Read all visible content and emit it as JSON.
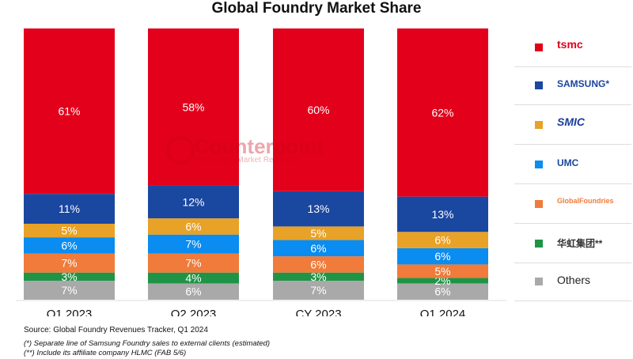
{
  "chart_data": {
    "type": "bar",
    "stacked": true,
    "title": "Global Foundry Market Share",
    "categories": [
      "Q1 2023",
      "Q2 2023",
      "CY 2023",
      "Q1 2024"
    ],
    "series": [
      {
        "name": "TSMC",
        "color": "#e3001b",
        "values": [
          61,
          58,
          60,
          62
        ]
      },
      {
        "name": "Samsung",
        "color": "#1a47a0",
        "values": [
          11,
          12,
          13,
          13
        ]
      },
      {
        "name": "SMIC",
        "color": "#e8a228",
        "values": [
          5,
          6,
          5,
          6
        ]
      },
      {
        "name": "UMC",
        "color": "#0a8cf0",
        "values": [
          6,
          7,
          6,
          6
        ]
      },
      {
        "name": "GlobalFoundries",
        "color": "#f07b3a",
        "values": [
          7,
          7,
          6,
          5
        ]
      },
      {
        "name": "Huahong Group",
        "color": "#1f9446",
        "values": [
          3,
          4,
          3,
          2
        ]
      },
      {
        "name": "Others",
        "color": "#a9a9a9",
        "values": [
          7,
          6,
          7,
          6
        ]
      }
    ],
    "value_format": "{v}%",
    "xlabel": "",
    "ylabel": "",
    "ylim": [
      0,
      100
    ],
    "grid": false,
    "legend_position": "right"
  },
  "legend": [
    {
      "label": "tsmc",
      "style": "logo",
      "color": "#e3001b"
    },
    {
      "label": "SAMSUNG*",
      "style": "logo",
      "color": "#1a47a0"
    },
    {
      "label": "SMIC",
      "style": "logo",
      "color": "#1a3c9c"
    },
    {
      "label": "UMC",
      "style": "logo",
      "color": "#1a47a0"
    },
    {
      "label": "GlobalFoundries",
      "style": "logo",
      "color": "#f07b3a"
    },
    {
      "label": "华虹集团**",
      "style": "logo",
      "color": "#333"
    },
    {
      "label": "Others",
      "style": "text",
      "color": "#222"
    }
  ],
  "watermark": {
    "name": "Counterpoint",
    "tagline": "Technology Market Research"
  },
  "notes": {
    "source": "Source: Global Foundry Revenues Tracker, Q1 2024",
    "footnote1": "(*) Separate line of Samsung Foundry sales to external clients (estimated)",
    "footnote2": "(**) Include its affiliate company HLMC (FAB 5/6)"
  }
}
